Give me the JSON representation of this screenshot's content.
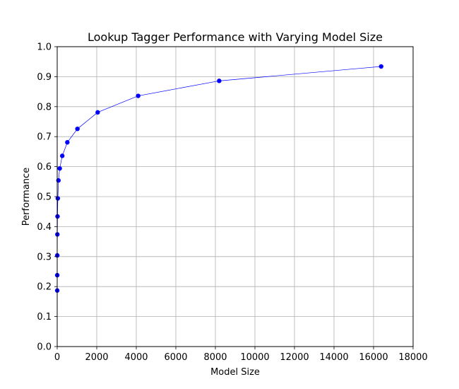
{
  "chart_data": {
    "type": "line",
    "title": "Lookup Tagger Performance with Varying Model Size",
    "xlabel": "Model Size",
    "ylabel": "Performance",
    "xlim": [
      0,
      18000
    ],
    "ylim": [
      0.0,
      1.0
    ],
    "xticks": [
      0,
      2000,
      4000,
      6000,
      8000,
      10000,
      12000,
      14000,
      16000,
      18000
    ],
    "xtick_labels": [
      "0",
      "2000",
      "4000",
      "6000",
      "8000",
      "10000",
      "12000",
      "14000",
      "16000",
      "18000"
    ],
    "yticks": [
      0.0,
      0.1,
      0.2,
      0.3,
      0.4,
      0.5,
      0.6,
      0.7,
      0.8,
      0.9,
      1.0
    ],
    "ytick_labels": [
      "0.0",
      "0.1",
      "0.2",
      "0.3",
      "0.4",
      "0.5",
      "0.6",
      "0.7",
      "0.8",
      "0.9",
      "1.0"
    ],
    "grid": true,
    "series": [
      {
        "color": "#0000ff",
        "marker": "circle",
        "x": [
          1,
          2,
          4,
          8,
          16,
          32,
          64,
          128,
          256,
          512,
          1024,
          2048,
          4096,
          8192,
          16384
        ],
        "y": [
          0.187,
          0.238,
          0.304,
          0.374,
          0.434,
          0.494,
          0.554,
          0.594,
          0.636,
          0.681,
          0.726,
          0.781,
          0.836,
          0.886,
          0.934
        ]
      }
    ]
  }
}
